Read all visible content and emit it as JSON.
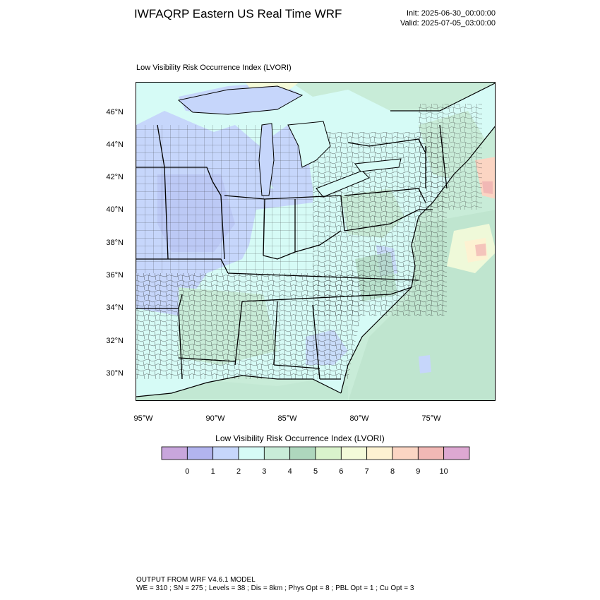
{
  "header": {
    "title": "IWFAQRP Eastern US Real Time WRF",
    "init": "Init: 2025-06-30_00:00:00",
    "valid": "Valid: 2025-07-05_03:00:00"
  },
  "plot": {
    "variable_label": "Low Visibility Risk Occurrence Index   (LVORI)"
  },
  "axes": {
    "lat_labels": [
      "46°N",
      "44°N",
      "42°N",
      "40°N",
      "38°N",
      "36°N",
      "34°N",
      "32°N",
      "30°N"
    ],
    "lon_labels": [
      "95°W",
      "90°W",
      "85°W",
      "80°W",
      "75°W"
    ]
  },
  "colorbar": {
    "title": "Low Visibility Risk Occurrence Index  (LVORI)",
    "labels": [
      "0",
      "1",
      "2",
      "3",
      "4",
      "5",
      "6",
      "7",
      "8",
      "9",
      "10"
    ],
    "colors": [
      "#c8a6dc",
      "#b2b4ee",
      "#c6d6fb",
      "#d6fbf6",
      "#c8ecd8",
      "#aed7bd",
      "#d9f3cc",
      "#f4fbd9",
      "#fdf2d2",
      "#fbd5c3",
      "#f1b8b5",
      "#dda8d2"
    ]
  },
  "footer": {
    "line1": "OUTPUT FROM WRF V4.6.1 MODEL",
    "line2": "WE = 310 ; SN = 275 ; Levels = 38 ; Dis = 8km ; Phys Opt = 8 ; PBL Opt = 1 ; Cu Opt = 3"
  }
}
